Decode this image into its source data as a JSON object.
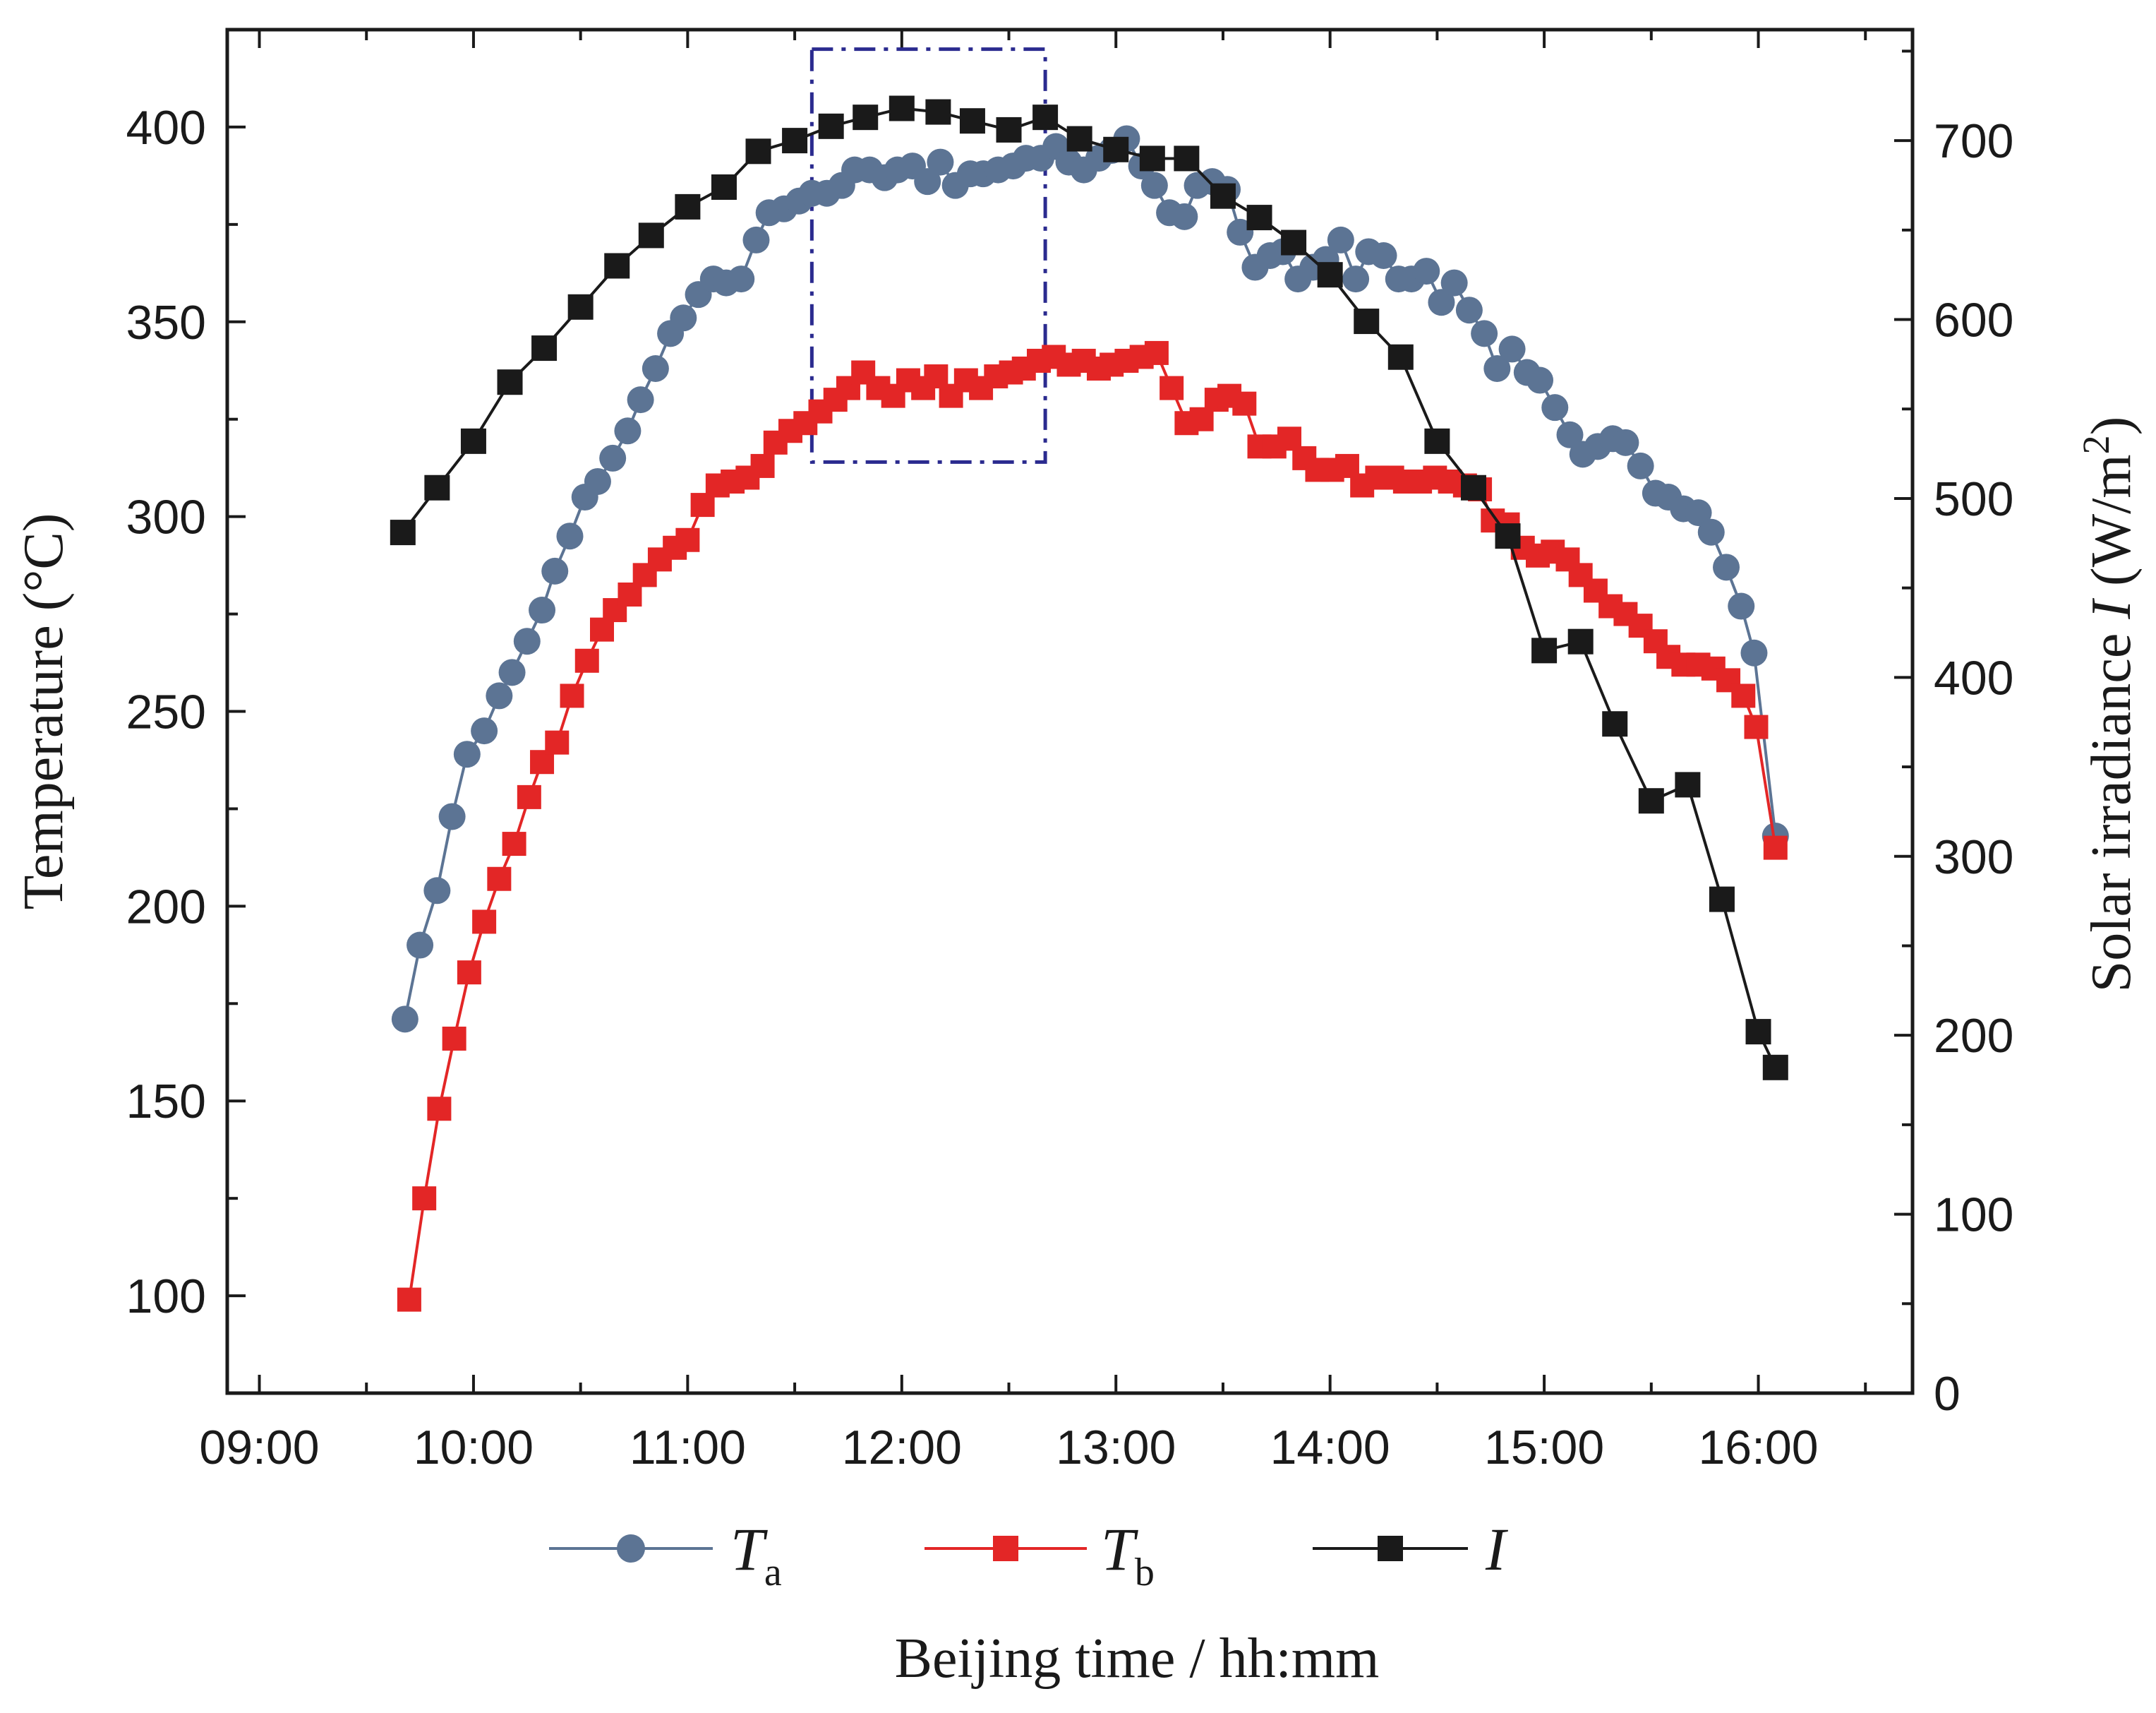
{
  "chart_data": {
    "type": "line",
    "title": "",
    "xlabel": "Beijing time / hh:mm",
    "ylabel_left": "Temperature (°C)",
    "ylabel_right_parts": [
      "Solar irradiance ",
      "I",
      " (W/m",
      "2",
      ")"
    ],
    "x_unit": "hours",
    "xlim": [
      8.85,
      16.72
    ],
    "ylim_left": [
      75,
      425
    ],
    "ylim_right": [
      0,
      762
    ],
    "x_ticks": [
      9,
      10,
      11,
      12,
      13,
      14,
      15,
      16
    ],
    "x_tick_labels": [
      "09:00",
      "10:00",
      "11:00",
      "12:00",
      "13:00",
      "14:00",
      "15:00",
      "16:00"
    ],
    "y_left_ticks": [
      100,
      150,
      200,
      250,
      300,
      350,
      400
    ],
    "y_left_tick_labels": [
      "100",
      "150",
      "200",
      "250",
      "300",
      "350",
      "400"
    ],
    "y_right_ticks": [
      0,
      100,
      200,
      300,
      400,
      500,
      600,
      700
    ],
    "y_right_tick_labels": [
      "0",
      "100",
      "200",
      "300",
      "400",
      "500",
      "600",
      "700"
    ],
    "highlight_box": {
      "x": [
        11.58,
        12.67
      ],
      "y_left": [
        314,
        420
      ],
      "color": "#2b2b8f"
    },
    "legend_position": "bottom",
    "series": [
      {
        "name": "T",
        "subscript": "a",
        "axis": "left",
        "marker": "circle",
        "color": "#5c7494",
        "x": [
          9.68,
          9.75,
          9.83,
          9.9,
          9.97,
          10.05,
          10.12,
          10.18,
          10.25,
          10.32,
          10.38,
          10.45,
          10.52,
          10.58,
          10.65,
          10.72,
          10.78,
          10.85,
          10.92,
          10.98,
          11.05,
          11.12,
          11.18,
          11.25,
          11.32,
          11.38,
          11.45,
          11.52,
          11.58,
          11.65,
          11.72,
          11.78,
          11.85,
          11.92,
          11.98,
          12.05,
          12.12,
          12.18,
          12.25,
          12.32,
          12.38,
          12.45,
          12.52,
          12.58,
          12.65,
          12.72,
          12.78,
          12.85,
          12.92,
          12.98,
          13.05,
          13.12,
          13.18,
          13.25,
          13.32,
          13.38,
          13.45,
          13.52,
          13.58,
          13.65,
          13.72,
          13.78,
          13.85,
          13.92,
          13.98,
          14.05,
          14.12,
          14.18,
          14.25,
          14.32,
          14.38,
          14.45,
          14.52,
          14.58,
          14.65,
          14.72,
          14.78,
          14.85,
          14.92,
          14.98,
          15.05,
          15.12,
          15.18,
          15.25,
          15.32,
          15.38,
          15.45,
          15.52,
          15.58,
          15.65,
          15.72,
          15.78,
          15.85,
          15.92,
          15.98,
          16.08
        ],
        "values": [
          171,
          190,
          204,
          223,
          239,
          245,
          254,
          260,
          268,
          276,
          286,
          295,
          305,
          309,
          315,
          322,
          330,
          338,
          347,
          351,
          357,
          361,
          360,
          361,
          371,
          378,
          379,
          381,
          383,
          383,
          385,
          389,
          389,
          387,
          389,
          390,
          386,
          391,
          385,
          388,
          388,
          389,
          390,
          392,
          392,
          395,
          391,
          389,
          392,
          394,
          397,
          390,
          385,
          378,
          377,
          385,
          386,
          384,
          373,
          364,
          367,
          368,
          361,
          364,
          366,
          371,
          361,
          368,
          367,
          361,
          361,
          363,
          355,
          360,
          353,
          347,
          338,
          343,
          337,
          335,
          328,
          321,
          316,
          318,
          320,
          319,
          313,
          306,
          305,
          302,
          301,
          296,
          287,
          277,
          265,
          218
        ]
      },
      {
        "name": "T",
        "subscript": "b",
        "axis": "left",
        "marker": "square",
        "color": "#e32626",
        "x": [
          9.7,
          9.77,
          9.84,
          9.91,
          9.98,
          10.05,
          10.12,
          10.19,
          10.26,
          10.32,
          10.39,
          10.46,
          10.53,
          10.6,
          10.66,
          10.73,
          10.8,
          10.87,
          10.94,
          11.0,
          11.07,
          11.14,
          11.21,
          11.28,
          11.35,
          11.41,
          11.48,
          11.55,
          11.62,
          11.69,
          11.75,
          11.82,
          11.89,
          11.96,
          12.03,
          12.1,
          12.16,
          12.23,
          12.3,
          12.37,
          12.44,
          12.51,
          12.57,
          12.64,
          12.71,
          12.78,
          12.85,
          12.92,
          12.98,
          13.05,
          13.12,
          13.19,
          13.26,
          13.33,
          13.4,
          13.47,
          13.53,
          13.6,
          13.67,
          13.74,
          13.81,
          13.88,
          13.94,
          14.01,
          14.08,
          14.15,
          14.22,
          14.29,
          14.35,
          14.42,
          14.49,
          14.56,
          14.63,
          14.7,
          14.76,
          14.83,
          14.9,
          14.97,
          15.04,
          15.11,
          15.17,
          15.24,
          15.31,
          15.38,
          15.45,
          15.52,
          15.58,
          15.65,
          15.72,
          15.79,
          15.86,
          15.93,
          15.99,
          16.08
        ],
        "values": [
          99,
          125,
          148,
          166,
          183,
          196,
          207,
          216,
          228,
          237,
          242,
          254,
          263,
          271,
          276,
          280,
          285,
          289,
          292,
          294,
          303,
          308,
          309,
          310,
          313,
          319,
          322,
          324,
          327,
          330,
          333,
          337,
          333,
          331,
          335,
          333,
          336,
          331,
          335,
          333,
          336,
          337,
          338,
          340,
          341,
          339,
          340,
          338,
          339,
          340,
          341,
          342,
          333,
          324,
          325,
          330,
          331,
          329,
          318,
          318,
          320,
          315,
          312,
          312,
          313,
          308,
          310,
          310,
          309,
          309,
          310,
          309,
          308,
          307,
          299,
          298,
          292,
          290,
          291,
          289,
          285,
          281,
          277,
          275,
          272,
          268,
          264,
          262,
          262,
          261,
          258,
          254,
          246,
          215
        ]
      },
      {
        "name": "I",
        "subscript": "",
        "axis": "right",
        "marker": "square",
        "color": "#1a1a1a",
        "x": [
          9.67,
          9.83,
          10.0,
          10.17,
          10.33,
          10.5,
          10.67,
          10.83,
          11.0,
          11.17,
          11.33,
          11.5,
          11.67,
          11.83,
          12.0,
          12.17,
          12.33,
          12.5,
          12.67,
          12.83,
          13.0,
          13.17,
          13.33,
          13.5,
          13.67,
          13.83,
          14.0,
          14.17,
          14.33,
          14.5,
          14.67,
          14.83,
          15.0,
          15.17,
          15.33,
          15.5,
          15.67,
          15.83,
          16.0,
          16.08
        ],
        "values": [
          481,
          506,
          532,
          565,
          584,
          607,
          630,
          647,
          663,
          674,
          694,
          700,
          708,
          713,
          718,
          716,
          711,
          706,
          713,
          701,
          695,
          690,
          690,
          669,
          657,
          643,
          625,
          599,
          579,
          532,
          506,
          479,
          415,
          420,
          374,
          331,
          340,
          276,
          202,
          182
        ]
      }
    ]
  }
}
